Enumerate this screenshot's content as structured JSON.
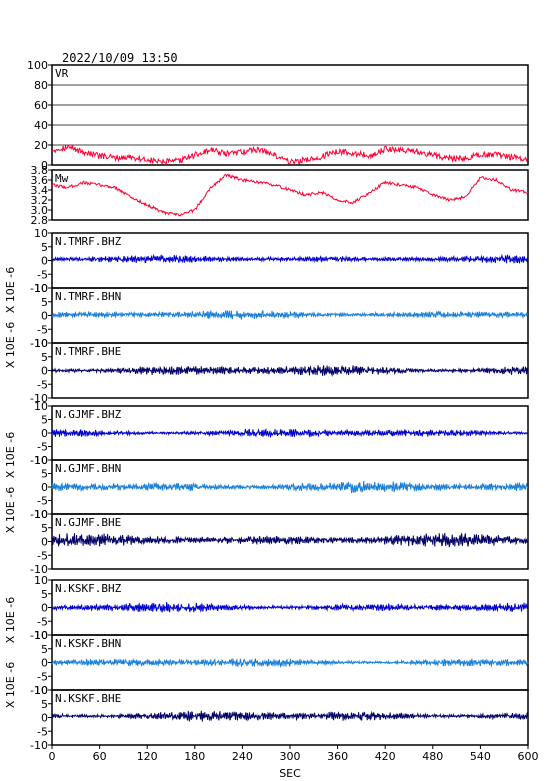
{
  "chart_data": {
    "type": "line",
    "title": "2022/10/09  13:50",
    "x_ticks": [
      "0",
      "60",
      "120",
      "180",
      "240",
      "300",
      "360",
      "420",
      "480",
      "540",
      "600"
    ],
    "xlim": [
      0,
      600
    ],
    "xlabel": "SEC",
    "grid": "horizontal lines in VR panel",
    "panels": [
      {
        "label": "VR",
        "color": "#ff0033",
        "ylim": [
          0,
          100
        ],
        "y_ticks": [
          "100",
          "80",
          "60",
          "40",
          "20",
          "0"
        ],
        "points": [
          [
            0,
            15
          ],
          [
            20,
            18
          ],
          [
            40,
            13
          ],
          [
            60,
            9
          ],
          [
            80,
            7
          ],
          [
            100,
            8
          ],
          [
            120,
            5
          ],
          [
            140,
            3
          ],
          [
            160,
            4
          ],
          [
            180,
            10
          ],
          [
            200,
            15
          ],
          [
            220,
            11
          ],
          [
            240,
            13
          ],
          [
            260,
            16
          ],
          [
            280,
            10
          ],
          [
            300,
            3
          ],
          [
            320,
            5
          ],
          [
            340,
            8
          ],
          [
            360,
            14
          ],
          [
            380,
            12
          ],
          [
            400,
            9
          ],
          [
            420,
            16
          ],
          [
            440,
            15
          ],
          [
            460,
            14
          ],
          [
            480,
            10
          ],
          [
            500,
            7
          ],
          [
            520,
            6
          ],
          [
            540,
            11
          ],
          [
            560,
            10
          ],
          [
            580,
            8
          ],
          [
            600,
            6
          ]
        ]
      },
      {
        "label": "Mw",
        "color": "#ff0033",
        "ylim": [
          2.8,
          3.8
        ],
        "y_ticks": [
          "3.8",
          "3.6",
          "3.4",
          "3.2",
          "3.0",
          "2.8"
        ],
        "points": [
          [
            0,
            3.5
          ],
          [
            20,
            3.45
          ],
          [
            40,
            3.55
          ],
          [
            60,
            3.5
          ],
          [
            80,
            3.45
          ],
          [
            100,
            3.25
          ],
          [
            120,
            3.1
          ],
          [
            140,
            2.95
          ],
          [
            160,
            2.9
          ],
          [
            180,
            3.0
          ],
          [
            200,
            3.45
          ],
          [
            220,
            3.7
          ],
          [
            240,
            3.6
          ],
          [
            260,
            3.55
          ],
          [
            280,
            3.5
          ],
          [
            300,
            3.4
          ],
          [
            320,
            3.3
          ],
          [
            340,
            3.35
          ],
          [
            360,
            3.2
          ],
          [
            380,
            3.15
          ],
          [
            400,
            3.35
          ],
          [
            420,
            3.55
          ],
          [
            440,
            3.5
          ],
          [
            460,
            3.45
          ],
          [
            480,
            3.3
          ],
          [
            500,
            3.2
          ],
          [
            520,
            3.25
          ],
          [
            540,
            3.65
          ],
          [
            560,
            3.6
          ],
          [
            580,
            3.4
          ],
          [
            600,
            3.35
          ]
        ]
      },
      {
        "label": "N.TMRF.BHZ",
        "color": "#0000cc",
        "ylim": [
          -10,
          10
        ],
        "y_ticks": [
          "10",
          "5",
          "0",
          "-5",
          "-10"
        ],
        "offset": 0.5,
        "amplitude": 0.8
      },
      {
        "label": "N.TMRF.BHN",
        "color": "#1a7fd9",
        "ylim": [
          -10,
          10
        ],
        "y_ticks": [
          "10",
          "5",
          "0",
          "-5",
          "-10"
        ],
        "offset": 0.3,
        "amplitude": 0.9
      },
      {
        "label": "N.TMRF.BHE",
        "color": "#000066",
        "ylim": [
          -10,
          10
        ],
        "y_ticks": [
          "10",
          "5",
          "0",
          "-5",
          "-10"
        ],
        "offset": 0.0,
        "amplitude": 1.1
      },
      {
        "label": "N.GJMF.BHZ",
        "color": "#0000cc",
        "ylim": [
          -10,
          10
        ],
        "y_ticks": [
          "10",
          "5",
          "0",
          "-5",
          "-10"
        ],
        "offset": 0.0,
        "amplitude": 0.9
      },
      {
        "label": "N.GJMF.BHN",
        "color": "#1a7fd9",
        "ylim": [
          -10,
          10
        ],
        "y_ticks": [
          "10",
          "5",
          "0",
          "-5",
          "-10"
        ],
        "offset": 0.0,
        "amplitude": 1.2
      },
      {
        "label": "N.GJMF.BHE",
        "color": "#000066",
        "ylim": [
          -10,
          10
        ],
        "y_ticks": [
          "10",
          "5",
          "0",
          "-5",
          "-10"
        ],
        "offset": 0.5,
        "amplitude": 1.3
      },
      {
        "label": "N.KSKF.BHZ",
        "color": "#0000cc",
        "ylim": [
          -10,
          10
        ],
        "y_ticks": [
          "10",
          "5",
          "0",
          "-5",
          "-10"
        ],
        "offset": 0.0,
        "amplitude": 1.0
      },
      {
        "label": "N.KSKF.BHN",
        "color": "#1a7fd9",
        "ylim": [
          -10,
          10
        ],
        "y_ticks": [
          "10",
          "5",
          "0",
          "-5",
          "-10"
        ],
        "offset": 0.0,
        "amplitude": 0.9
      },
      {
        "label": "N.KSKF.BHE",
        "color": "#000066",
        "ylim": [
          -10,
          10
        ],
        "y_ticks": [
          "10",
          "5",
          "0",
          "-5",
          "-10"
        ],
        "offset": 0.5,
        "amplitude": 1.1
      }
    ],
    "waveform_ylabel": "X 10E -6"
  }
}
